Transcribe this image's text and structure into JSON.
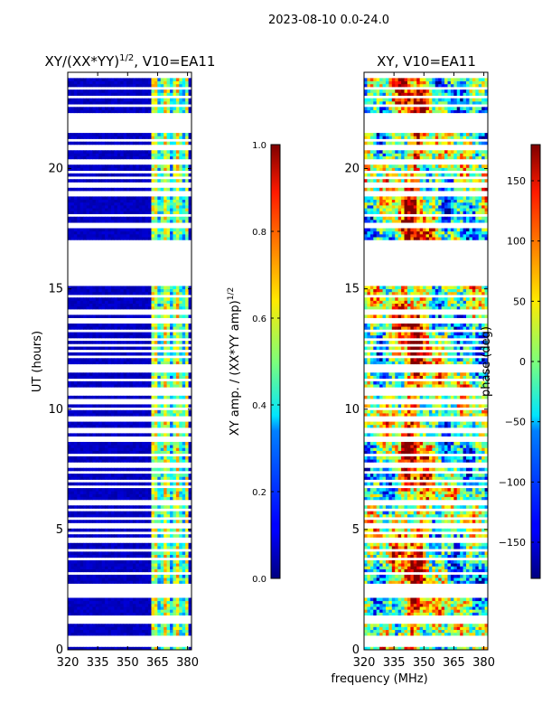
{
  "figure": {
    "date_label": "2023-08-10 0.0-24.0",
    "xlabel": "frequency (MHz)"
  },
  "chart_data": [
    {
      "type": "heatmap",
      "title_prefix": "XY/(XX*YY)",
      "title_sup": "1/2",
      "title_suffix": ", V10=EA11",
      "ylabel": "UT (hours)",
      "xlim": [
        320,
        382
      ],
      "ylim": [
        0,
        24
      ],
      "xticks": [
        320,
        335,
        350,
        365,
        380
      ],
      "yticks": [
        0,
        5,
        10,
        15,
        20
      ],
      "colorbar": {
        "label_prefix": "XY amp. / (XX*YY amp)",
        "label_sup": "1/2",
        "range": [
          0.0,
          1.0
        ],
        "ticks": [
          "0.0",
          "0.2",
          "0.4",
          "0.6",
          "0.8",
          "1.0"
        ],
        "tick_values": [
          0.0,
          0.2,
          0.4,
          0.6,
          0.8,
          1.0
        ]
      }
    },
    {
      "type": "heatmap",
      "title": "XY, V10=EA11",
      "ylabel": "",
      "xlim": [
        320,
        382
      ],
      "ylim": [
        0,
        24
      ],
      "xticks": [
        320,
        335,
        350,
        365,
        380
      ],
      "yticks": [
        0,
        5,
        10,
        15,
        20
      ],
      "colorbar": {
        "label": "phase (deg)",
        "range": [
          -180,
          180
        ],
        "ticks": [
          "150",
          "100",
          "50",
          "0",
          "−50",
          "−100",
          "−150"
        ],
        "tick_values": [
          150,
          100,
          50,
          0,
          -50,
          -100,
          -150
        ]
      }
    }
  ]
}
